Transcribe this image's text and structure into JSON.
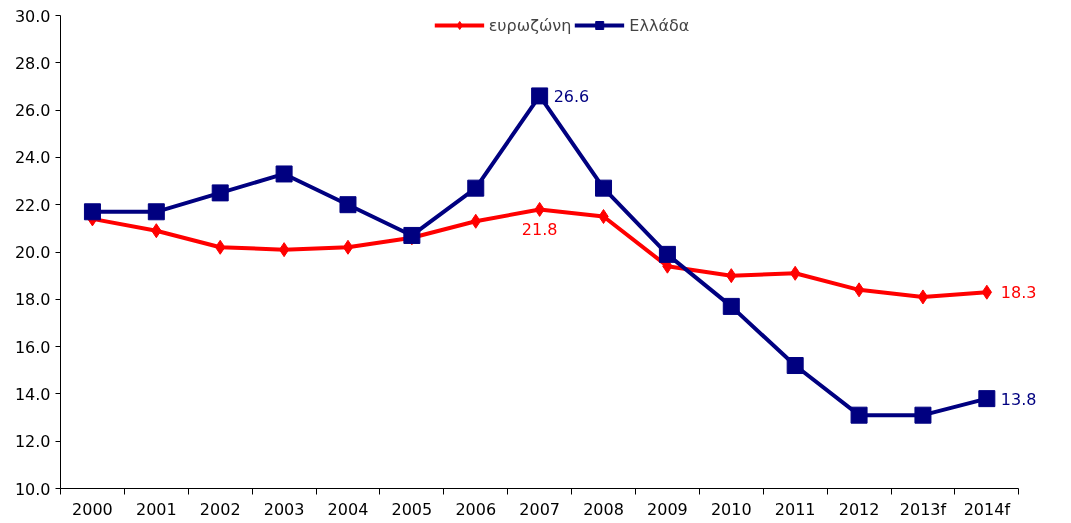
{
  "chart_data": {
    "type": "line",
    "categories": [
      "2000",
      "2001",
      "2002",
      "2003",
      "2004",
      "2005",
      "2006",
      "2007",
      "2008",
      "2009",
      "2010",
      "2011",
      "2012",
      "2013f",
      "2014f"
    ],
    "series": [
      {
        "name": "ευρωζώνη",
        "color": "#ff0000",
        "marker": "diamond",
        "values": [
          21.4,
          20.9,
          20.2,
          20.1,
          20.2,
          20.6,
          21.3,
          21.8,
          21.5,
          19.4,
          19.0,
          19.1,
          18.4,
          18.1,
          18.3
        ],
        "value_labels": [
          null,
          null,
          null,
          null,
          null,
          null,
          null,
          "21.8",
          null,
          null,
          null,
          null,
          null,
          null,
          "18.3"
        ]
      },
      {
        "name": "Ελλάδα",
        "color": "#000080",
        "marker": "square",
        "values": [
          21.7,
          21.7,
          22.5,
          23.3,
          22.0,
          20.7,
          22.7,
          26.6,
          22.7,
          19.9,
          17.7,
          15.2,
          13.1,
          13.1,
          13.8
        ],
        "value_labels": [
          null,
          null,
          null,
          null,
          null,
          null,
          null,
          "26.6",
          null,
          null,
          null,
          null,
          null,
          null,
          "13.8"
        ]
      }
    ],
    "ylim": [
      10,
      30
    ],
    "yticks": [
      {
        "value": 10,
        "label": "10.0"
      },
      {
        "value": 12,
        "label": "12.0"
      },
      {
        "value": 14,
        "label": "14.0"
      },
      {
        "value": 16,
        "label": "16.0"
      },
      {
        "value": 18,
        "label": "18.0"
      },
      {
        "value": 20,
        "label": "20.0"
      },
      {
        "value": 22,
        "label": "22.0"
      },
      {
        "value": 24,
        "label": "24.0"
      },
      {
        "value": 26,
        "label": "26.0"
      },
      {
        "value": 28,
        "label": "28.0"
      },
      {
        "value": 30,
        "label": "30.0"
      }
    ],
    "grid": false,
    "legend": "top",
    "line_style": "solid"
  }
}
